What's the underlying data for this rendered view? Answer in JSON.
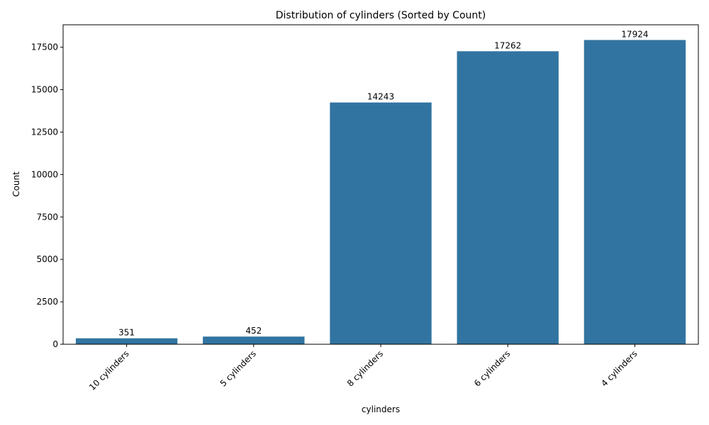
{
  "chart_data": {
    "type": "bar",
    "title": "Distribution of cylinders (Sorted by Count)",
    "xlabel": "cylinders",
    "ylabel": "Count",
    "categories": [
      "10 cylinders",
      "5 cylinders",
      "8 cylinders",
      "6 cylinders",
      "4 cylinders"
    ],
    "values": [
      351,
      452,
      14243,
      17262,
      17924
    ],
    "data_labels": [
      "351",
      "452",
      "14243",
      "17262",
      "17924"
    ],
    "ylim": [
      0,
      18820
    ],
    "yticks": [
      0,
      2500,
      5000,
      7500,
      10000,
      12500,
      15000,
      17500
    ],
    "ytick_labels": [
      "0",
      "2500",
      "5000",
      "7500",
      "10000",
      "12500",
      "15000",
      "17500"
    ],
    "grid": false,
    "legend": "none",
    "bar_color": "#3274a1"
  }
}
